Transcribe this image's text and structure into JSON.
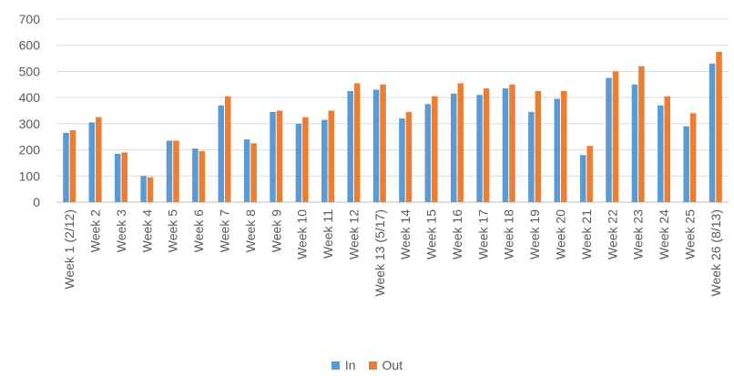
{
  "chart_data": {
    "type": "bar",
    "title": "",
    "xlabel": "",
    "ylabel": "",
    "ylim": [
      0,
      700
    ],
    "yticks": [
      0,
      100,
      200,
      300,
      400,
      500,
      600,
      700
    ],
    "grid": true,
    "legend_position": "bottom",
    "categories": [
      "Week 1 (2/12)",
      "Week 2",
      "Week 3",
      "Week 4",
      "Week 5",
      "Week 6",
      "Week 7",
      "Week 8",
      "Week 9",
      "Week 10",
      "Week 11",
      "Week 12",
      "Week 13 (5/17)",
      "Week 14",
      "Week 15",
      "Week 16",
      "Week 17",
      "Week 18",
      "Week 19",
      "Week 20",
      "Week 21",
      "Week 22",
      "Week 23",
      "Week 24",
      "Week 25",
      "Week 26 (8/13)"
    ],
    "series": [
      {
        "name": "In",
        "color": "#5b9bd5",
        "values": [
          265,
          305,
          185,
          100,
          235,
          205,
          370,
          240,
          345,
          300,
          315,
          425,
          430,
          320,
          375,
          415,
          410,
          435,
          345,
          395,
          180,
          475,
          450,
          370,
          290,
          530
        ]
      },
      {
        "name": "Out",
        "color": "#ed7d31",
        "values": [
          275,
          325,
          190,
          95,
          235,
          195,
          405,
          225,
          350,
          325,
          350,
          455,
          450,
          345,
          405,
          455,
          435,
          450,
          425,
          425,
          215,
          500,
          520,
          405,
          340,
          575
        ]
      }
    ]
  }
}
